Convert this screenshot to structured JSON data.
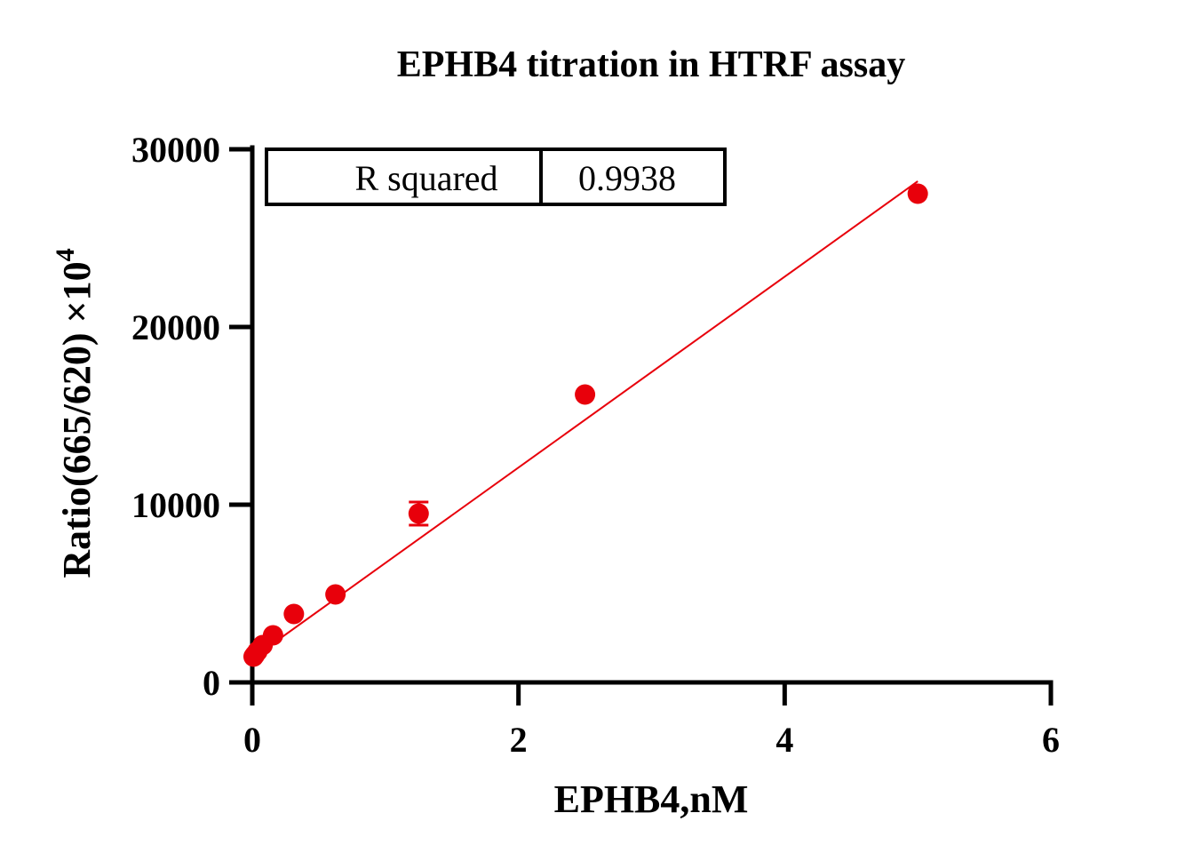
{
  "chart_data": {
    "type": "scatter",
    "title": "EPHB4 titration in HTRF assay",
    "xlabel": "EPHB4,nM",
    "ylabel": "Ratio(665/620) ×10",
    "ylabel_superscript": "4",
    "xlim": [
      0,
      6
    ],
    "ylim": [
      0,
      30000
    ],
    "x_ticks": [
      0,
      2,
      4,
      6
    ],
    "y_ticks": [
      0,
      10000,
      20000,
      30000
    ],
    "x_tick_labels": [
      "0",
      "2",
      "4",
      "6"
    ],
    "y_tick_labels": [
      "0",
      "10000",
      "20000",
      "30000"
    ],
    "grid": false,
    "legend": "none",
    "series": [
      {
        "color": "#e8000b",
        "points": [
          {
            "x": 0.0098,
            "y": 1450,
            "err": 0
          },
          {
            "x": 0.0195,
            "y": 1550,
            "err": 0
          },
          {
            "x": 0.039,
            "y": 1750,
            "err": 0
          },
          {
            "x": 0.078,
            "y": 2100,
            "err": 0
          },
          {
            "x": 0.156,
            "y": 2650,
            "err": 0
          },
          {
            "x": 0.3125,
            "y": 3850,
            "err": 0
          },
          {
            "x": 0.625,
            "y": 4950,
            "err": 0
          },
          {
            "x": 1.25,
            "y": 9500,
            "err": 650
          },
          {
            "x": 2.5,
            "y": 16200,
            "err": 0
          },
          {
            "x": 5.0,
            "y": 27500,
            "err": 0
          }
        ],
        "fit_line": {
          "x0": 0,
          "y0": 1350,
          "x1": 5,
          "y1": 28200
        }
      }
    ],
    "annotation": {
      "label": "R squared",
      "value": "0.9938"
    }
  }
}
